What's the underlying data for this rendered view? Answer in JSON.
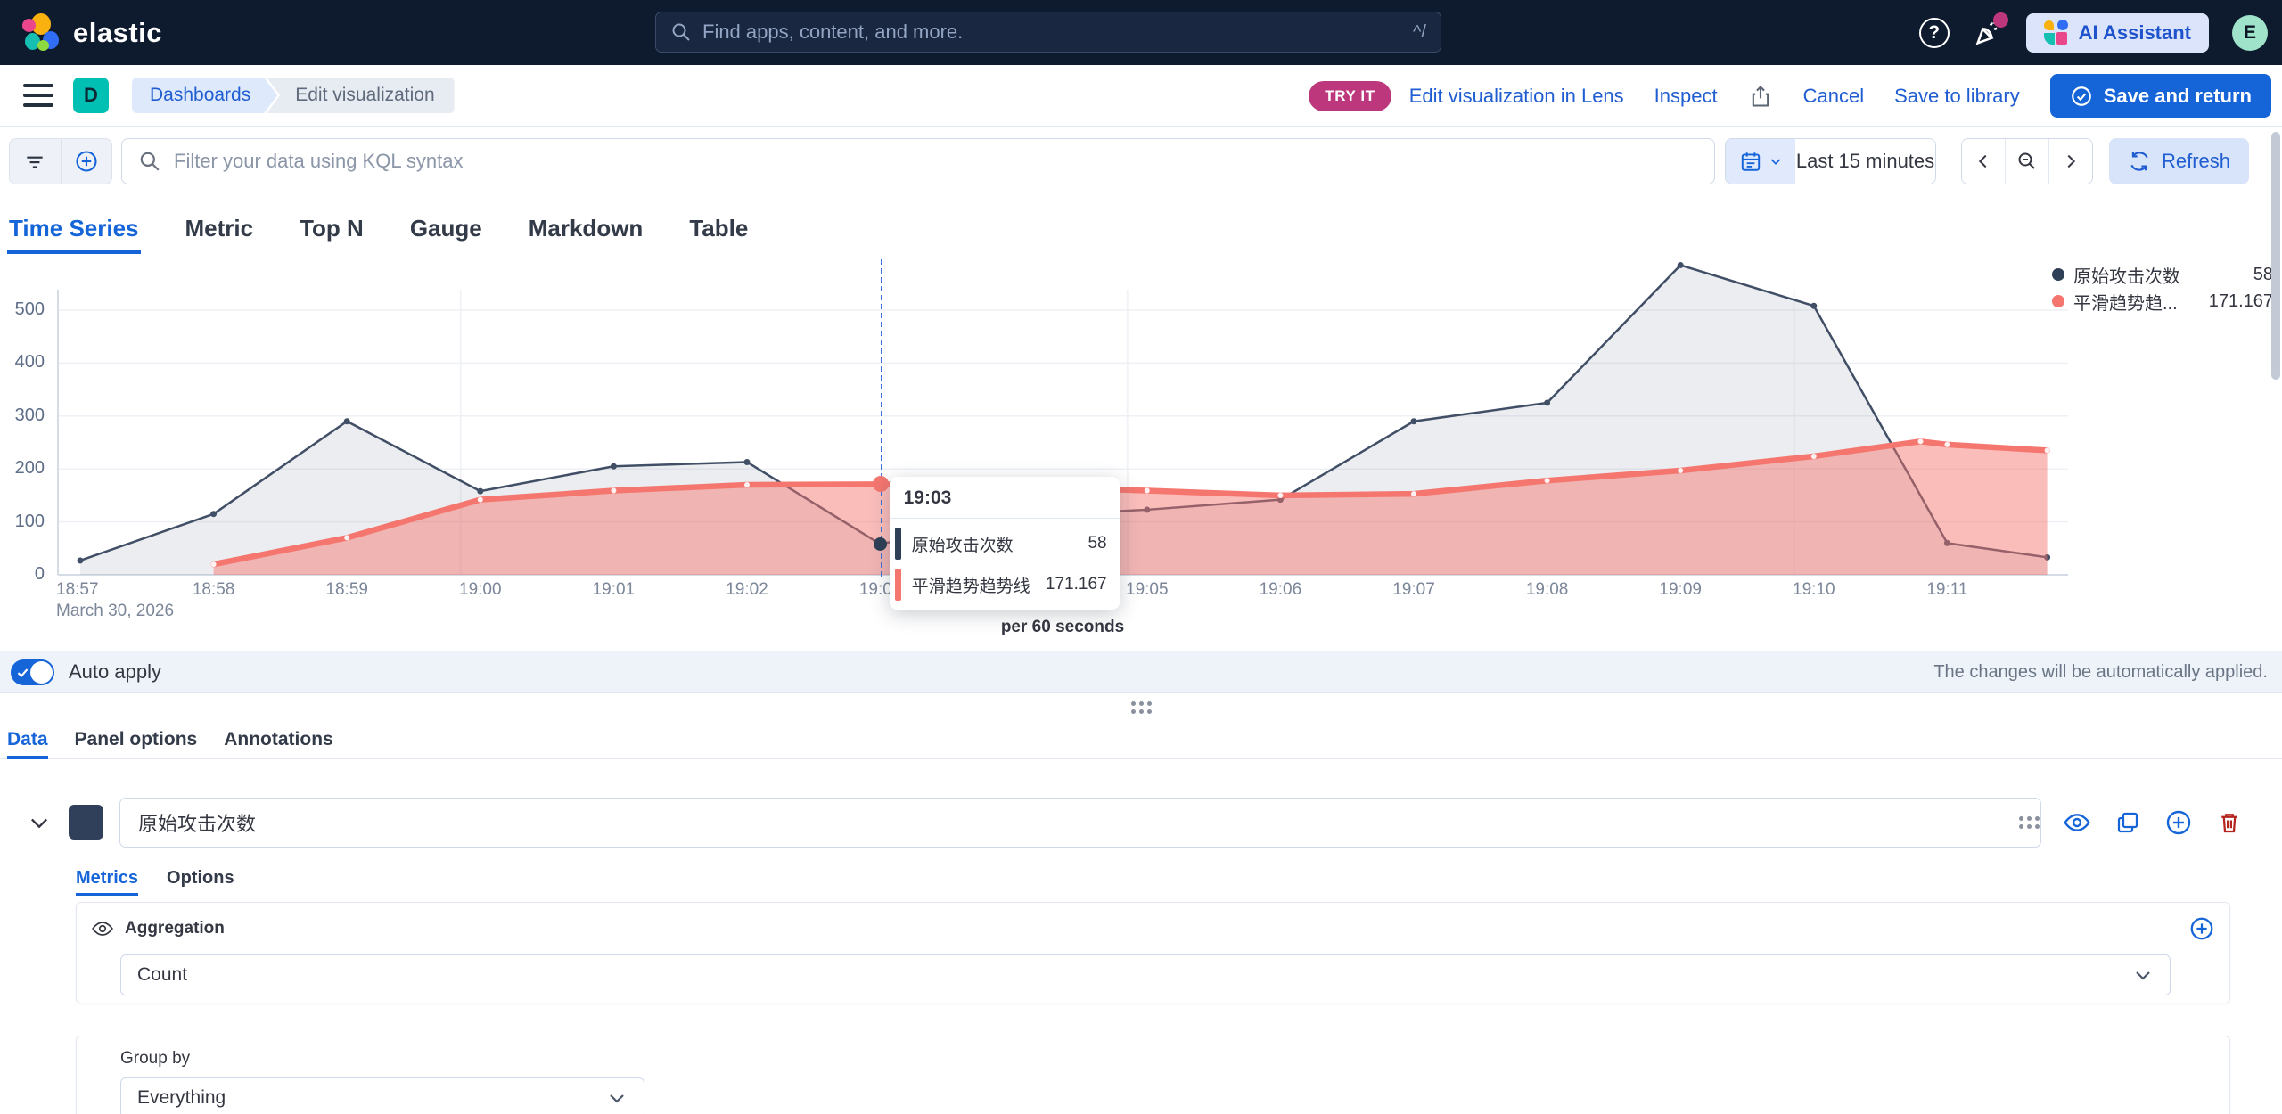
{
  "header": {
    "logo_text": "elastic",
    "search_placeholder": "Find apps, content, and more.",
    "search_shortcut": "^/",
    "ai_assistant_label": "AI Assistant",
    "avatar_initial": "E"
  },
  "toolbar": {
    "app_badge": "D",
    "breadcrumb_dashboards": "Dashboards",
    "breadcrumb_edit": "Edit visualization",
    "try_it_badge": "TRY IT",
    "edit_in_lens": "Edit visualization in Lens",
    "inspect": "Inspect",
    "cancel": "Cancel",
    "save_to_library": "Save to library",
    "save_and_return": "Save and return"
  },
  "filter_bar": {
    "kql_placeholder": "Filter your data using KQL syntax",
    "time_range": "Last 15 minutes",
    "refresh_label": "Refresh"
  },
  "viz_tabs": [
    {
      "label": "Time Series"
    },
    {
      "label": "Metric"
    },
    {
      "label": "Top N"
    },
    {
      "label": "Gauge"
    },
    {
      "label": "Markdown"
    },
    {
      "label": "Table"
    }
  ],
  "chart_data": {
    "type": "area",
    "x_labels": [
      "18:57",
      "18:58",
      "18:59",
      "19:00",
      "19:01",
      "19:02",
      "19:03",
      "19:04",
      "19:05",
      "19:06",
      "19:07",
      "19:08",
      "19:09",
      "19:10",
      "19:11"
    ],
    "x_date_label": "March 30, 2026",
    "xlabel": "per 60 seconds",
    "ylim": [
      0,
      620
    ],
    "y_ticks": [
      0,
      100,
      200,
      300,
      400,
      500
    ],
    "grid": true,
    "legend_position": "top-right",
    "series": [
      {
        "name": "原始攻击次数",
        "color": "#414f66",
        "fill": "rgba(134,146,162,0.16)",
        "width": 2.5,
        "x": [
          0,
          1,
          2,
          3,
          4,
          5,
          6,
          7,
          8,
          9,
          10,
          11,
          12,
          13,
          14,
          14.75
        ],
        "values": [
          27,
          115,
          290,
          158,
          205,
          213,
          58,
          110,
          123,
          142,
          290,
          325,
          585,
          508,
          60,
          33
        ]
      },
      {
        "name": "平滑趋势趋势线",
        "color": "#f4766f",
        "fill": "rgba(244,118,111,0.48)",
        "width": 6.5,
        "x": [
          1,
          2,
          3,
          4,
          5,
          6,
          7,
          8,
          9,
          10,
          11,
          12,
          13,
          13.8,
          14,
          14.75
        ],
        "values": [
          20,
          70,
          142,
          159,
          170,
          171.167,
          167,
          159,
          150,
          153,
          178,
          197,
          224,
          252,
          246,
          235
        ]
      }
    ],
    "hover": {
      "m": 6,
      "time": "19:03",
      "values": [
        58,
        171.167
      ]
    }
  },
  "legend": [
    {
      "label": "原始攻击次数",
      "value": "58",
      "color": "#2e3f56"
    },
    {
      "label": "平滑趋势趋...",
      "value": "171.167",
      "color": "#f4766f"
    }
  ],
  "tooltip": {
    "time": "19:03",
    "rows": [
      {
        "label": "原始攻击次数",
        "value": "58",
        "color": "#2e3f56"
      },
      {
        "label": "平滑趋势趋势线",
        "value": "171.167",
        "color": "#f4766f"
      }
    ]
  },
  "auto_apply": {
    "label": "Auto apply",
    "note": "The changes will be automatically applied."
  },
  "panel_tabs": [
    {
      "label": "Data"
    },
    {
      "label": "Panel options"
    },
    {
      "label": "Annotations"
    }
  ],
  "series_editor": {
    "name": "原始攻击次数",
    "color": "#31405a"
  },
  "series_tabs": [
    {
      "label": "Metrics"
    },
    {
      "label": "Options"
    }
  ],
  "aggregation": {
    "label": "Aggregation",
    "value": "Count"
  },
  "group_by": {
    "label": "Group by",
    "value": "Everything"
  }
}
